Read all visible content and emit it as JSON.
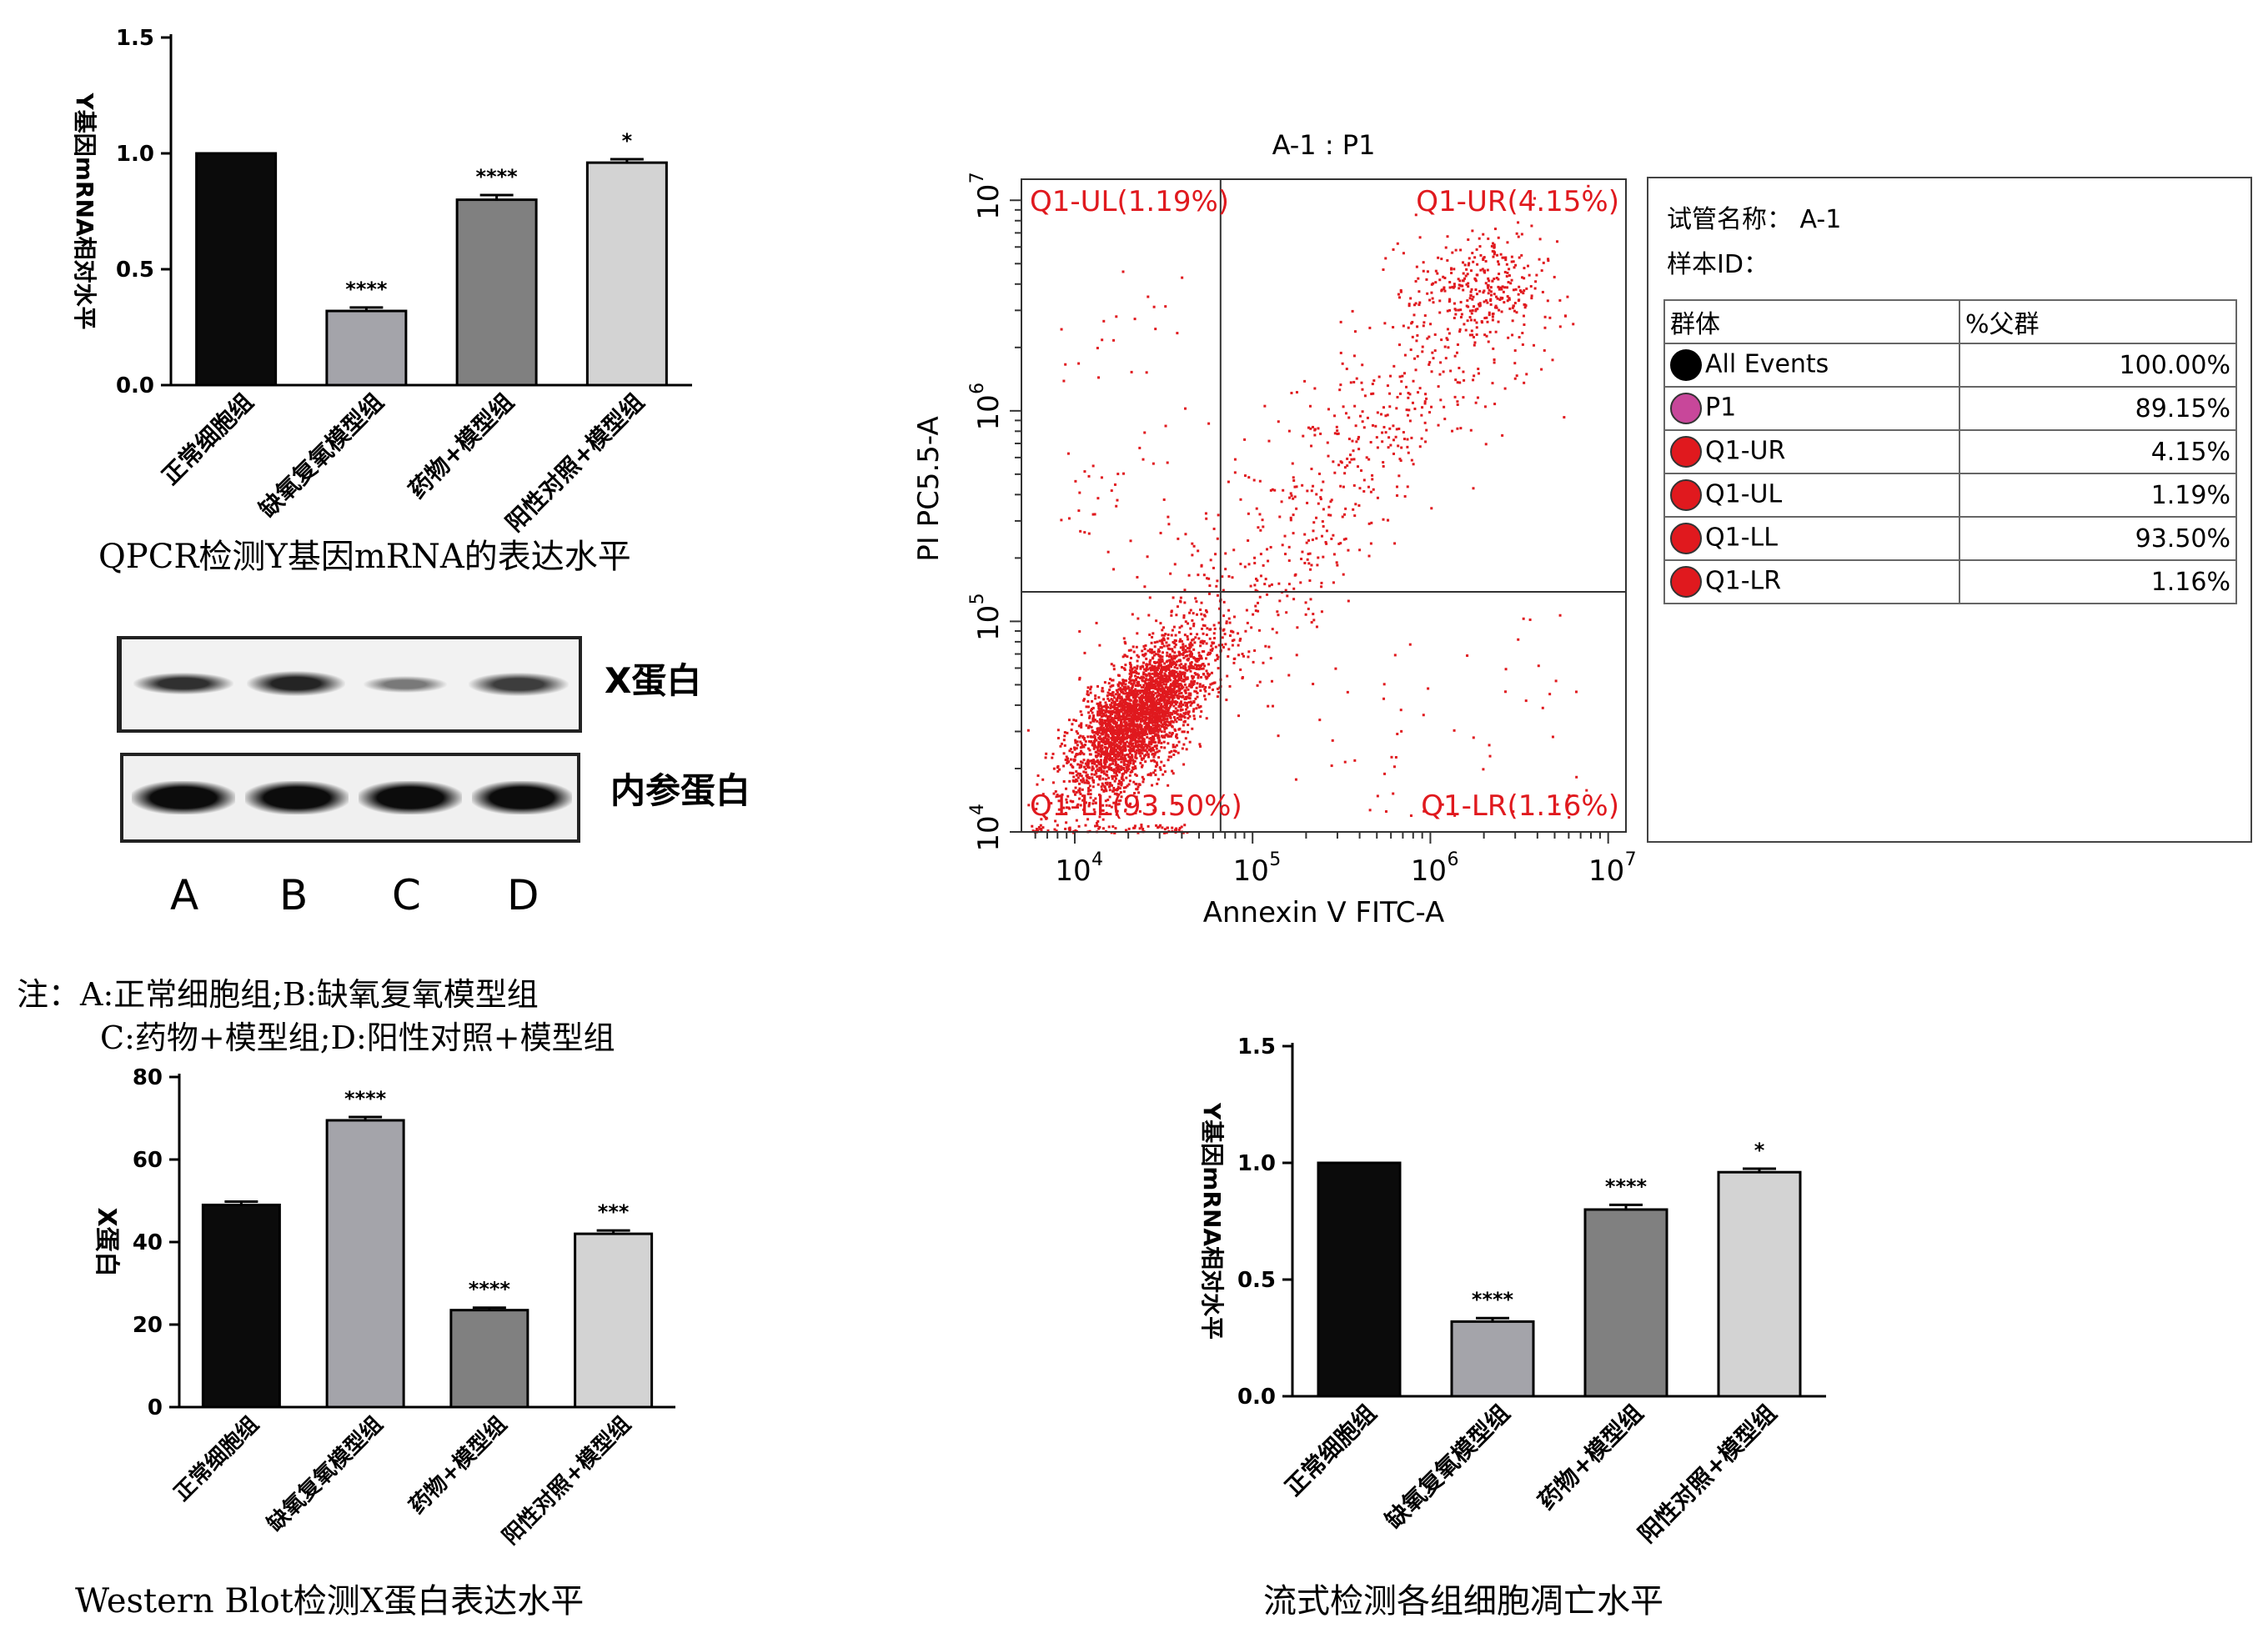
{
  "captions": {
    "qpcr": "QPCR检测Y基因mRNA的表达水平",
    "wb_chart": "Western Blot检测X蛋白表达水平",
    "flow": "流式检测各组细胞凋亡水平"
  },
  "note": {
    "line1": "注：A:正常细胞组;B:缺氧复氧模型组",
    "line2": "C:药物+模型组;D:阳性对照+模型组"
  },
  "western_blot": {
    "band_x": "X蛋白",
    "band_ref": "内参蛋白",
    "lanes": [
      "A",
      "B",
      "C",
      "D"
    ],
    "band_x_intensity": [
      0.8,
      0.85,
      0.5,
      0.75
    ],
    "band_ref_intensity": [
      0.95,
      0.95,
      0.95,
      0.95
    ]
  },
  "flow_panel": {
    "title": "A-1 : P1",
    "info": {
      "tube_label": "试管名称：",
      "tube_value": "A-1",
      "sample_label": "样本ID："
    },
    "table_headers": [
      "群体",
      "%父群"
    ],
    "table_rows": [
      {
        "name": "All Events",
        "value": "100.00%",
        "color": "#000000"
      },
      {
        "name": "P1",
        "value": "89.15%",
        "color": "#c8479a"
      },
      {
        "name": "Q1-UR",
        "value": "4.15%",
        "color": "#e0191e"
      },
      {
        "name": "Q1-UL",
        "value": "1.19%",
        "color": "#e0191e"
      },
      {
        "name": "Q1-LL",
        "value": "93.50%",
        "color": "#e0191e"
      },
      {
        "name": "Q1-LR",
        "value": "1.16%",
        "color": "#e0191e"
      }
    ]
  },
  "chart_data": [
    {
      "type": "bar",
      "id": "qpcr_top",
      "categories": [
        "正常细胞组",
        "缺氧复氧模型组",
        "药物+模型组",
        "阳性对照+模型组"
      ],
      "values": [
        1.0,
        0.32,
        0.8,
        0.96
      ],
      "errors": [
        0,
        0.015,
        0.02,
        0.015
      ],
      "significance": [
        "",
        "****",
        "****",
        "*"
      ],
      "colors": [
        "#0b0b0b",
        "#a4a4aa",
        "#808080",
        "#d3d3d3"
      ],
      "ylabel": "Y基因mRNA相对水平",
      "ylim": [
        0,
        1.5
      ],
      "yticks": [
        "0.0",
        "0.5",
        "1.0",
        "1.5"
      ],
      "ytick_values": [
        0,
        0.5,
        1.0,
        1.5
      ]
    },
    {
      "type": "bar",
      "id": "wb_bar",
      "categories": [
        "正常细胞组",
        "缺氧复氧模型组",
        "药物+模型组",
        "阳性对照+模型组"
      ],
      "values": [
        49,
        69.5,
        23.5,
        42
      ],
      "errors": [
        0.8,
        0.8,
        0.6,
        0.8
      ],
      "significance": [
        "",
        "****",
        "****",
        "***"
      ],
      "colors": [
        "#0b0b0b",
        "#a4a4aa",
        "#808080",
        "#d3d3d3"
      ],
      "ylabel": "X蛋白",
      "ylim": [
        0,
        80
      ],
      "yticks": [
        "0",
        "20",
        "40",
        "60",
        "80"
      ],
      "ytick_values": [
        0,
        20,
        40,
        60,
        80
      ]
    },
    {
      "type": "bar",
      "id": "qpcr_bottom",
      "categories": [
        "正常细胞组",
        "缺氧复氧模型组",
        "药物+模型组",
        "阳性对照+模型组"
      ],
      "values": [
        1.0,
        0.32,
        0.8,
        0.96
      ],
      "errors": [
        0,
        0.015,
        0.02,
        0.015
      ],
      "significance": [
        "",
        "****",
        "****",
        "*"
      ],
      "colors": [
        "#0b0b0b",
        "#a4a4aa",
        "#808080",
        "#d3d3d3"
      ],
      "ylabel": "Y基因mRNA相对水平",
      "ylim": [
        0,
        1.5
      ],
      "yticks": [
        "0.0",
        "0.5",
        "1.0",
        "1.5"
      ],
      "ytick_values": [
        0,
        0.5,
        1.0,
        1.5
      ]
    },
    {
      "type": "scatter",
      "id": "flow_scatter",
      "xlabel": "Annexin V FITC-A",
      "ylabel": "PI PC5.5-A",
      "xlim_log10": [
        3.7,
        7.1
      ],
      "ylim_log10": [
        4.0,
        7.1
      ],
      "x_ticks_log10": [
        4,
        5,
        6,
        7
      ],
      "y_ticks_log10": [
        4,
        5,
        6,
        7
      ],
      "tick_base": "10",
      "x_gate_log10": 4.82,
      "y_gate_log10": 5.14,
      "quadrants": [
        {
          "name": "Q1-UL",
          "label": "Q1-UL(1.19%)",
          "percent": 1.19
        },
        {
          "name": "Q1-UR",
          "label": "Q1-UR(4.15%)",
          "percent": 4.15
        },
        {
          "name": "Q1-LL",
          "label": "Q1-LL(93.50%)",
          "percent": 93.5
        },
        {
          "name": "Q1-LR",
          "label": "Q1-LR(1.16%)",
          "percent": 1.16
        }
      ],
      "point_color": "#e0191e"
    }
  ]
}
